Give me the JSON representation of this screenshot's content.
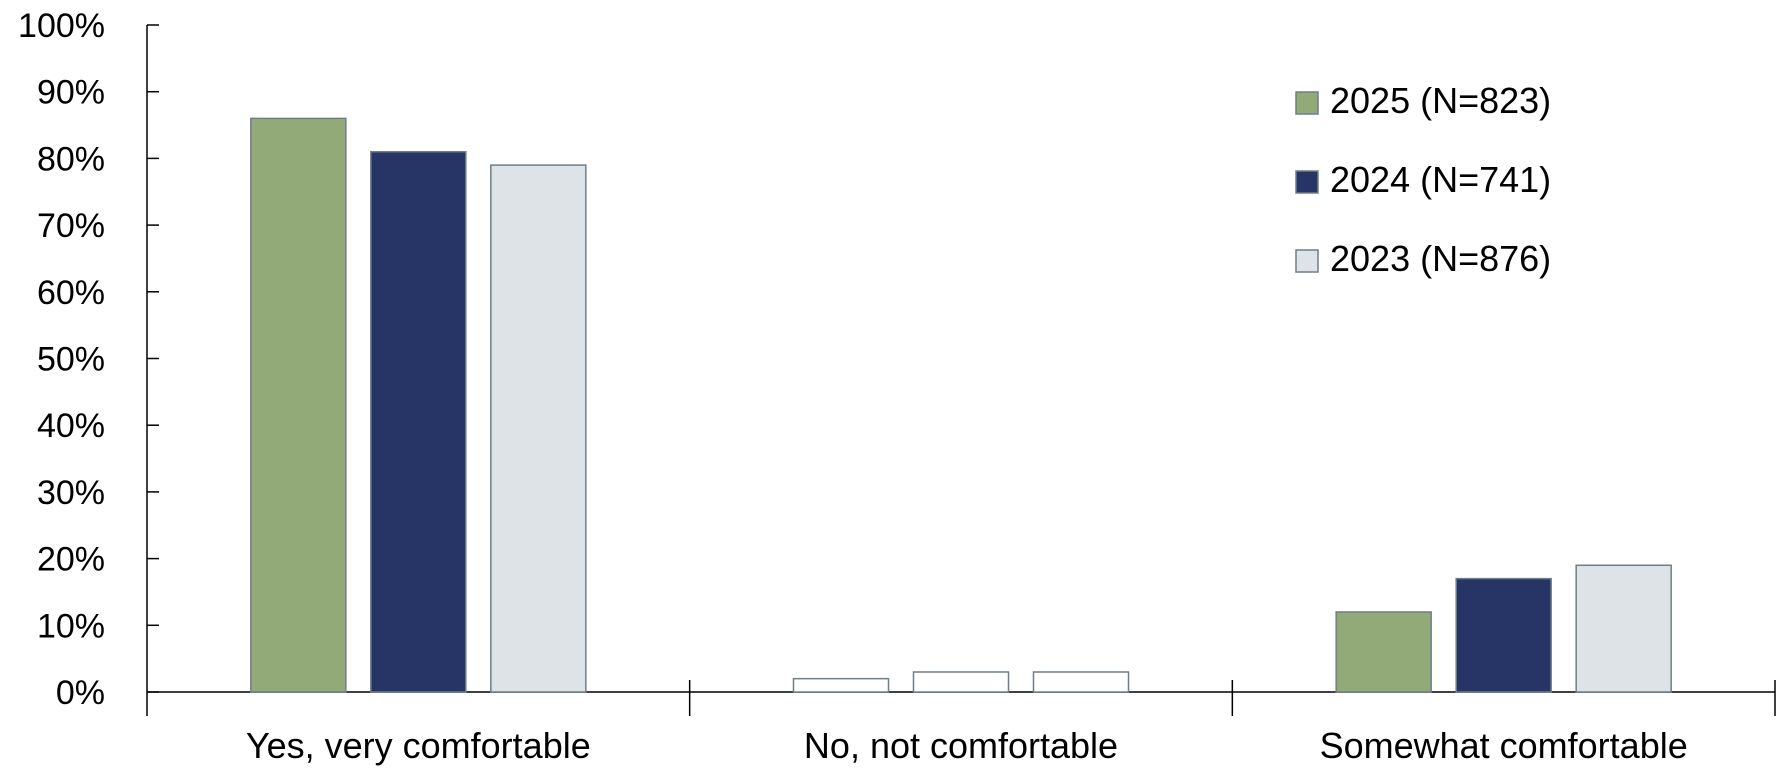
{
  "chart_data": {
    "type": "bar",
    "title": "",
    "xlabel": "",
    "ylabel": "",
    "categories": [
      "Yes, very comfortable",
      "No, not comfortable",
      "Somewhat comfortable"
    ],
    "series": [
      {
        "name": "2025 (N=823)",
        "color": "#92a978",
        "values": [
          86,
          0,
          12
        ]
      },
      {
        "name": "2024 (N=741)",
        "color": "#263466",
        "values": [
          81,
          0,
          17
        ]
      },
      {
        "name": "2023 (N=876)",
        "color": "#dde3e6",
        "values": [
          79,
          0,
          19
        ]
      }
    ],
    "outline_bars": [
      2,
      3,
      3
    ],
    "ylim": [
      0,
      100
    ],
    "yticks": [
      "0%",
      "10%",
      "20%",
      "30%",
      "40%",
      "50%",
      "60%",
      "70%",
      "80%",
      "90%",
      "100%"
    ],
    "legend_position": "top-right",
    "grid": false
  }
}
